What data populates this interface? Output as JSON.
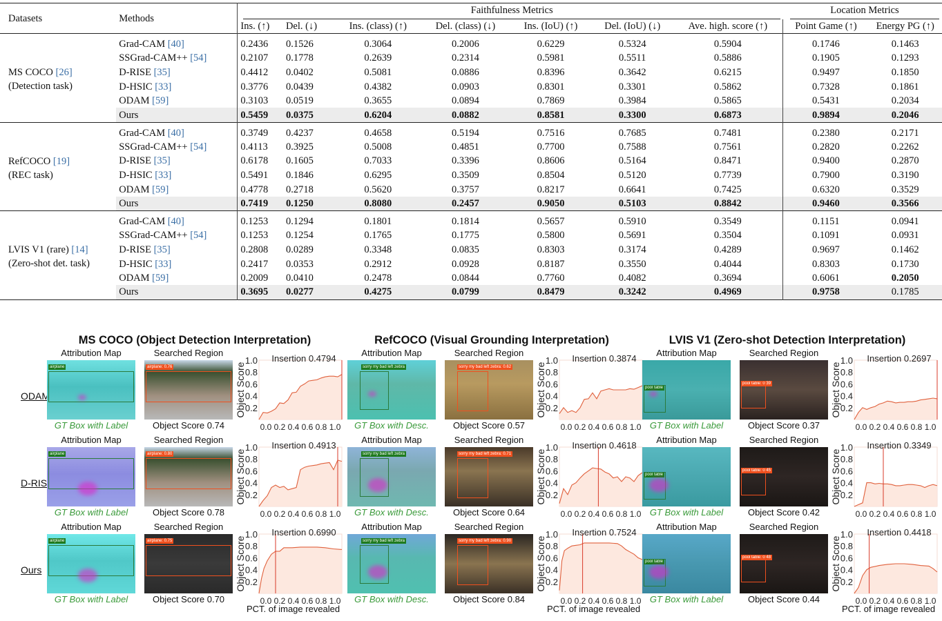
{
  "table": {
    "headers": {
      "datasets": "Datasets",
      "methods": "Methods",
      "faithfulness_group": "Faithfulness Metrics",
      "location_group": "Location Metrics",
      "columns": [
        "Ins. (↑)",
        "Del. (↓)",
        "Ins. (class) (↑)",
        "Del. (class) (↓)",
        "Ins. (IoU) (↑)",
        "Del. (IoU) (↓)",
        "Ave. high. score (↑)",
        "Point Game (↑)",
        "Energy PG (↑)"
      ]
    },
    "groups": [
      {
        "dataset_line1": "MS COCO ",
        "dataset_cite": "[26]",
        "dataset_line2": "(Detection task)",
        "rows": [
          {
            "method": "Grad-CAM ",
            "cite": "[40]",
            "values": [
              "0.2436",
              "0.1526",
              "0.3064",
              "0.2006",
              "0.6229",
              "0.5324",
              "0.5904",
              "0.1746",
              "0.1463"
            ]
          },
          {
            "method": "SSGrad-CAM++ ",
            "cite": "[54]",
            "values": [
              "0.2107",
              "0.1778",
              "0.2639",
              "0.2314",
              "0.5981",
              "0.5511",
              "0.5886",
              "0.1905",
              "0.1293"
            ]
          },
          {
            "method": "D-RISE ",
            "cite": "[35]",
            "values": [
              "0.4412",
              "0.0402",
              "0.5081",
              "0.0886",
              "0.8396",
              "0.3642",
              "0.6215",
              "0.9497",
              "0.1850"
            ]
          },
          {
            "method": "D-HSIC ",
            "cite": "[33]",
            "values": [
              "0.3776",
              "0.0439",
              "0.4382",
              "0.0903",
              "0.8301",
              "0.3301",
              "0.5862",
              "0.7328",
              "0.1861"
            ]
          },
          {
            "method": "ODAM ",
            "cite": "[59]",
            "values": [
              "0.3103",
              "0.0519",
              "0.3655",
              "0.0894",
              "0.7869",
              "0.3984",
              "0.5865",
              "0.5431",
              "0.2034"
            ]
          },
          {
            "method": "Ours",
            "cite": "",
            "values": [
              "0.5459",
              "0.0375",
              "0.6204",
              "0.0882",
              "0.8581",
              "0.3300",
              "0.6873",
              "0.9894",
              "0.2046"
            ],
            "bold": [
              true,
              true,
              true,
              true,
              true,
              true,
              true,
              true,
              true
            ]
          }
        ]
      },
      {
        "dataset_line1": "RefCOCO ",
        "dataset_cite": "[19]",
        "dataset_line2": "(REC task)",
        "rows": [
          {
            "method": "Grad-CAM ",
            "cite": "[40]",
            "values": [
              "0.3749",
              "0.4237",
              "0.4658",
              "0.5194",
              "0.7516",
              "0.7685",
              "0.7481",
              "0.2380",
              "0.2171"
            ]
          },
          {
            "method": "SSGrad-CAM++ ",
            "cite": "[54]",
            "values": [
              "0.4113",
              "0.3925",
              "0.5008",
              "0.4851",
              "0.7700",
              "0.7588",
              "0.7561",
              "0.2820",
              "0.2262"
            ]
          },
          {
            "method": "D-RISE ",
            "cite": "[35]",
            "values": [
              "0.6178",
              "0.1605",
              "0.7033",
              "0.3396",
              "0.8606",
              "0.5164",
              "0.8471",
              "0.9400",
              "0.2870"
            ]
          },
          {
            "method": "D-HSIC ",
            "cite": "[33]",
            "values": [
              "0.5491",
              "0.1846",
              "0.6295",
              "0.3509",
              "0.8504",
              "0.5120",
              "0.7739",
              "0.7900",
              "0.3190"
            ]
          },
          {
            "method": "ODAM ",
            "cite": "[59]",
            "values": [
              "0.4778",
              "0.2718",
              "0.5620",
              "0.3757",
              "0.8217",
              "0.6641",
              "0.7425",
              "0.6320",
              "0.3529"
            ]
          },
          {
            "method": "Ours",
            "cite": "",
            "values": [
              "0.7419",
              "0.1250",
              "0.8080",
              "0.2457",
              "0.9050",
              "0.5103",
              "0.8842",
              "0.9460",
              "0.3566"
            ],
            "bold": [
              true,
              true,
              true,
              true,
              true,
              true,
              true,
              true,
              true
            ]
          }
        ]
      },
      {
        "dataset_line1": "LVIS V1 (rare) ",
        "dataset_cite": "[14]",
        "dataset_line2": "(Zero-shot det. task)",
        "rows": [
          {
            "method": "Grad-CAM ",
            "cite": "[40]",
            "values": [
              "0.1253",
              "0.1294",
              "0.1801",
              "0.1814",
              "0.5657",
              "0.5910",
              "0.3549",
              "0.1151",
              "0.0941"
            ]
          },
          {
            "method": "SSGrad-CAM++ ",
            "cite": "[54]",
            "values": [
              "0.1253",
              "0.1254",
              "0.1765",
              "0.1775",
              "0.5800",
              "0.5691",
              "0.3504",
              "0.1091",
              "0.0931"
            ]
          },
          {
            "method": "D-RISE ",
            "cite": "[35]",
            "values": [
              "0.2808",
              "0.0289",
              "0.3348",
              "0.0835",
              "0.8303",
              "0.3174",
              "0.4289",
              "0.9697",
              "0.1462"
            ]
          },
          {
            "method": "D-HSIC ",
            "cite": "[33]",
            "values": [
              "0.2417",
              "0.0353",
              "0.2912",
              "0.0928",
              "0.8187",
              "0.3550",
              "0.4044",
              "0.8303",
              "0.1730"
            ]
          },
          {
            "method": "ODAM ",
            "cite": "[59]",
            "values": [
              "0.2009",
              "0.0410",
              "0.2478",
              "0.0844",
              "0.7760",
              "0.4082",
              "0.3694",
              "0.6061",
              "0.2050"
            ],
            "bold": [
              false,
              false,
              false,
              false,
              false,
              false,
              false,
              false,
              true
            ]
          },
          {
            "method": "Ours",
            "cite": "",
            "values": [
              "0.3695",
              "0.0277",
              "0.4275",
              "0.0799",
              "0.8479",
              "0.3242",
              "0.4969",
              "0.9758",
              "0.1785"
            ],
            "bold": [
              true,
              true,
              true,
              true,
              true,
              true,
              true,
              true,
              false
            ]
          }
        ]
      }
    ]
  },
  "figure": {
    "panels": [
      {
        "title": "MS COCO (Object Detection Interpretation)",
        "gt_caption": "GT Box with Label",
        "label": "airplane"
      },
      {
        "title": "RefCOCO (Visual Grounding Interpretation)",
        "gt_caption": "GT Box with Desc.",
        "label": "sorry my bad left zebra"
      },
      {
        "title": "LVIS V1 (Zero-shot Detection Interpretation)",
        "gt_caption": "GT Box with Label",
        "label": "pool table"
      }
    ],
    "rows": [
      "ODAM",
      "D-RISE",
      "Ours"
    ],
    "col_caption_attr": "Attribution Map",
    "col_caption_search": "Searched Region",
    "y_axis_label": "Object Score",
    "x_axis_label": "PCT. of image revealed",
    "y_ticks": [
      "1.0",
      "0.8",
      "0.6",
      "0.4",
      "0.2"
    ],
    "x_ticks": "0.0 0.2 0.4 0.6 0.8 1.0",
    "cells": [
      [
        {
          "insertion": "Insertion 0.4794",
          "score": "Object Score 0.74",
          "det_tag": "airplane: 0.76"
        },
        {
          "insertion": "Insertion 0.3874",
          "score": "Object Score 0.57",
          "det_tag": "sorry my bad left zebra: 0.62"
        },
        {
          "insertion": "Insertion 0.2697",
          "score": "Object Score 0.37",
          "det_tag": "pool table: 0.39"
        }
      ],
      [
        {
          "insertion": "Insertion 0.4913",
          "score": "Object Score 0.78",
          "det_tag": "airplane: 0.80"
        },
        {
          "insertion": "Insertion 0.4618",
          "score": "Object Score 0.64",
          "det_tag": "sorry my bad left zebra: 0.71"
        },
        {
          "insertion": "Insertion 0.3349",
          "score": "Object Score 0.42",
          "det_tag": "pool table: 0.45"
        }
      ],
      [
        {
          "insertion": "Insertion 0.6990",
          "score": "Object Score 0.70",
          "det_tag": "airplane: 0.75"
        },
        {
          "insertion": "Insertion 0.7524",
          "score": "Object Score 0.84",
          "det_tag": "sorry my bad left zebra: 0.90"
        },
        {
          "insertion": "Insertion 0.4418",
          "score": "Object Score 0.44",
          "det_tag": "pool table: 0.48"
        }
      ]
    ]
  },
  "chart_data": [
    {
      "type": "area",
      "title": "Insertion 0.4794",
      "row": "ODAM",
      "panel": "MS COCO",
      "xlabel": "",
      "ylabel": "Object Score",
      "xlim": [
        0,
        1
      ],
      "ylim": [
        0,
        1
      ],
      "x": [
        0,
        0.05,
        0.1,
        0.15,
        0.2,
        0.25,
        0.3,
        0.35,
        0.4,
        0.45,
        0.5,
        0.55,
        0.6,
        0.65,
        0.7,
        0.75,
        0.8,
        0.85,
        0.9,
        0.95,
        1.0
      ],
      "y": [
        0.0,
        0.12,
        0.11,
        0.14,
        0.18,
        0.28,
        0.27,
        0.33,
        0.45,
        0.46,
        0.56,
        0.6,
        0.65,
        0.66,
        0.67,
        0.7,
        0.72,
        0.73,
        0.73,
        0.72,
        0.76
      ],
      "vline": 1.0
    },
    {
      "type": "area",
      "title": "Insertion 0.3874",
      "row": "ODAM",
      "panel": "RefCOCO",
      "ylabel": "Object Score",
      "xlim": [
        0,
        1
      ],
      "ylim": [
        0,
        1
      ],
      "x": [
        0,
        0.05,
        0.1,
        0.15,
        0.2,
        0.25,
        0.3,
        0.35,
        0.4,
        0.45,
        0.5,
        0.55,
        0.6,
        0.65,
        0.7,
        0.75,
        0.8,
        0.85,
        0.9,
        0.95,
        1.0
      ],
      "y": [
        0.1,
        0.2,
        0.12,
        0.15,
        0.12,
        0.2,
        0.34,
        0.35,
        0.45,
        0.35,
        0.48,
        0.5,
        0.52,
        0.5,
        0.5,
        0.5,
        0.5,
        0.52,
        0.51,
        0.54,
        0.57
      ],
      "vline": null
    },
    {
      "type": "area",
      "title": "Insertion 0.2697",
      "row": "ODAM",
      "panel": "LVIS V1",
      "ylabel": "Object Score",
      "xlim": [
        0,
        1
      ],
      "ylim": [
        0,
        1
      ],
      "x": [
        0,
        0.05,
        0.1,
        0.15,
        0.2,
        0.25,
        0.3,
        0.35,
        0.4,
        0.45,
        0.5,
        0.55,
        0.6,
        0.65,
        0.7,
        0.75,
        0.8,
        0.85,
        0.9,
        0.95,
        1.0
      ],
      "y": [
        0.0,
        0.12,
        0.2,
        0.17,
        0.2,
        0.22,
        0.26,
        0.28,
        0.31,
        0.3,
        0.28,
        0.29,
        0.29,
        0.3,
        0.3,
        0.31,
        0.33,
        0.34,
        0.35,
        0.36,
        0.35
      ],
      "vline": 1.0
    },
    {
      "type": "area",
      "title": "Insertion 0.4913",
      "row": "D-RISE",
      "panel": "MS COCO",
      "ylabel": "Object Score",
      "xlim": [
        0,
        1
      ],
      "ylim": [
        0,
        1
      ],
      "x": [
        0,
        0.05,
        0.1,
        0.15,
        0.2,
        0.25,
        0.3,
        0.35,
        0.4,
        0.45,
        0.5,
        0.55,
        0.6,
        0.65,
        0.7,
        0.75,
        0.8,
        0.85,
        0.9,
        0.95,
        1.0
      ],
      "y": [
        0.0,
        0.1,
        0.18,
        0.32,
        0.36,
        0.32,
        0.34,
        0.28,
        0.3,
        0.32,
        0.62,
        0.66,
        0.68,
        0.69,
        0.7,
        0.72,
        0.73,
        0.74,
        0.62,
        0.78,
        0.76
      ],
      "vline": 0.95
    },
    {
      "type": "area",
      "title": "Insertion 0.4618",
      "row": "D-RISE",
      "panel": "RefCOCO",
      "ylabel": "Object Score",
      "xlim": [
        0,
        1
      ],
      "ylim": [
        0,
        1
      ],
      "x": [
        0,
        0.05,
        0.1,
        0.15,
        0.2,
        0.25,
        0.3,
        0.35,
        0.4,
        0.45,
        0.5,
        0.55,
        0.6,
        0.65,
        0.7,
        0.75,
        0.8,
        0.85,
        0.9,
        0.95,
        1.0
      ],
      "y": [
        0.05,
        0.3,
        0.2,
        0.36,
        0.4,
        0.48,
        0.55,
        0.6,
        0.65,
        0.64,
        0.63,
        0.58,
        0.55,
        0.48,
        0.5,
        0.42,
        0.5,
        0.48,
        0.42,
        0.52,
        0.57
      ],
      "vline": 0.47
    },
    {
      "type": "area",
      "title": "Insertion 0.3349",
      "row": "D-RISE",
      "panel": "LVIS V1",
      "ylabel": "Object Score",
      "xlim": [
        0,
        1
      ],
      "ylim": [
        0,
        1
      ],
      "x": [
        0,
        0.05,
        0.1,
        0.15,
        0.2,
        0.25,
        0.3,
        0.35,
        0.4,
        0.45,
        0.5,
        0.55,
        0.6,
        0.65,
        0.7,
        0.75,
        0.8,
        0.85,
        0.9,
        0.95,
        1.0
      ],
      "y": [
        0.0,
        0.03,
        0.06,
        0.4,
        0.4,
        0.38,
        0.39,
        0.38,
        0.38,
        0.37,
        0.35,
        0.35,
        0.36,
        0.37,
        0.37,
        0.36,
        0.35,
        0.32,
        0.35,
        0.37,
        0.35
      ],
      "vline": 0.35
    },
    {
      "type": "area",
      "title": "Insertion 0.6990",
      "row": "Ours",
      "panel": "MS COCO",
      "xlabel": "PCT. of image revealed",
      "ylabel": "Object Score",
      "xlim": [
        0,
        1
      ],
      "ylim": [
        0,
        1
      ],
      "x": [
        0,
        0.03,
        0.06,
        0.1,
        0.15,
        0.2,
        0.25,
        0.3,
        0.4,
        0.5,
        0.6,
        0.7,
        0.8,
        0.9,
        1.0
      ],
      "y": [
        0.0,
        0.25,
        0.42,
        0.55,
        0.66,
        0.71,
        0.71,
        0.77,
        0.77,
        0.78,
        0.78,
        0.78,
        0.77,
        0.75,
        0.74
      ],
      "vline": 0.2
    },
    {
      "type": "area",
      "title": "Insertion 0.7524",
      "row": "Ours",
      "panel": "RefCOCO",
      "xlabel": "PCT. of image revealed",
      "ylabel": "Object Score",
      "xlim": [
        0,
        1
      ],
      "ylim": [
        0,
        1
      ],
      "x": [
        0,
        0.03,
        0.06,
        0.1,
        0.15,
        0.2,
        0.25,
        0.3,
        0.4,
        0.5,
        0.6,
        0.7,
        0.75,
        0.8,
        0.85,
        0.9,
        0.95,
        1.0
      ],
      "y": [
        0.05,
        0.55,
        0.72,
        0.76,
        0.8,
        0.81,
        0.82,
        0.85,
        0.85,
        0.85,
        0.85,
        0.84,
        0.8,
        0.74,
        0.7,
        0.66,
        0.6,
        0.57
      ],
      "vline": 0.28
    },
    {
      "type": "area",
      "title": "Insertion 0.4418",
      "row": "Ours",
      "panel": "LVIS V1",
      "xlabel": "PCT. of image revealed",
      "ylabel": "Object Score",
      "xlim": [
        0,
        1
      ],
      "ylim": [
        0,
        1
      ],
      "x": [
        0,
        0.05,
        0.1,
        0.15,
        0.2,
        0.3,
        0.4,
        0.5,
        0.6,
        0.7,
        0.8,
        0.9,
        0.95,
        1.0
      ],
      "y": [
        0.0,
        0.1,
        0.3,
        0.4,
        0.44,
        0.47,
        0.49,
        0.5,
        0.5,
        0.49,
        0.47,
        0.46,
        0.42,
        0.36
      ],
      "vline": 0.18
    }
  ]
}
